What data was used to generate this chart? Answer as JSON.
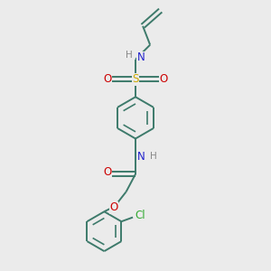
{
  "bg_color": "#ebebeb",
  "bond_color": "#3d7a6b",
  "N_color": "#2222cc",
  "O_color": "#cc0000",
  "S_color": "#ccaa00",
  "Cl_color": "#33aa33",
  "H_color": "#888888",
  "line_width": 1.4,
  "font_size": 8.5,
  "xlim": [
    0,
    10
  ],
  "ylim": [
    0,
    13
  ]
}
